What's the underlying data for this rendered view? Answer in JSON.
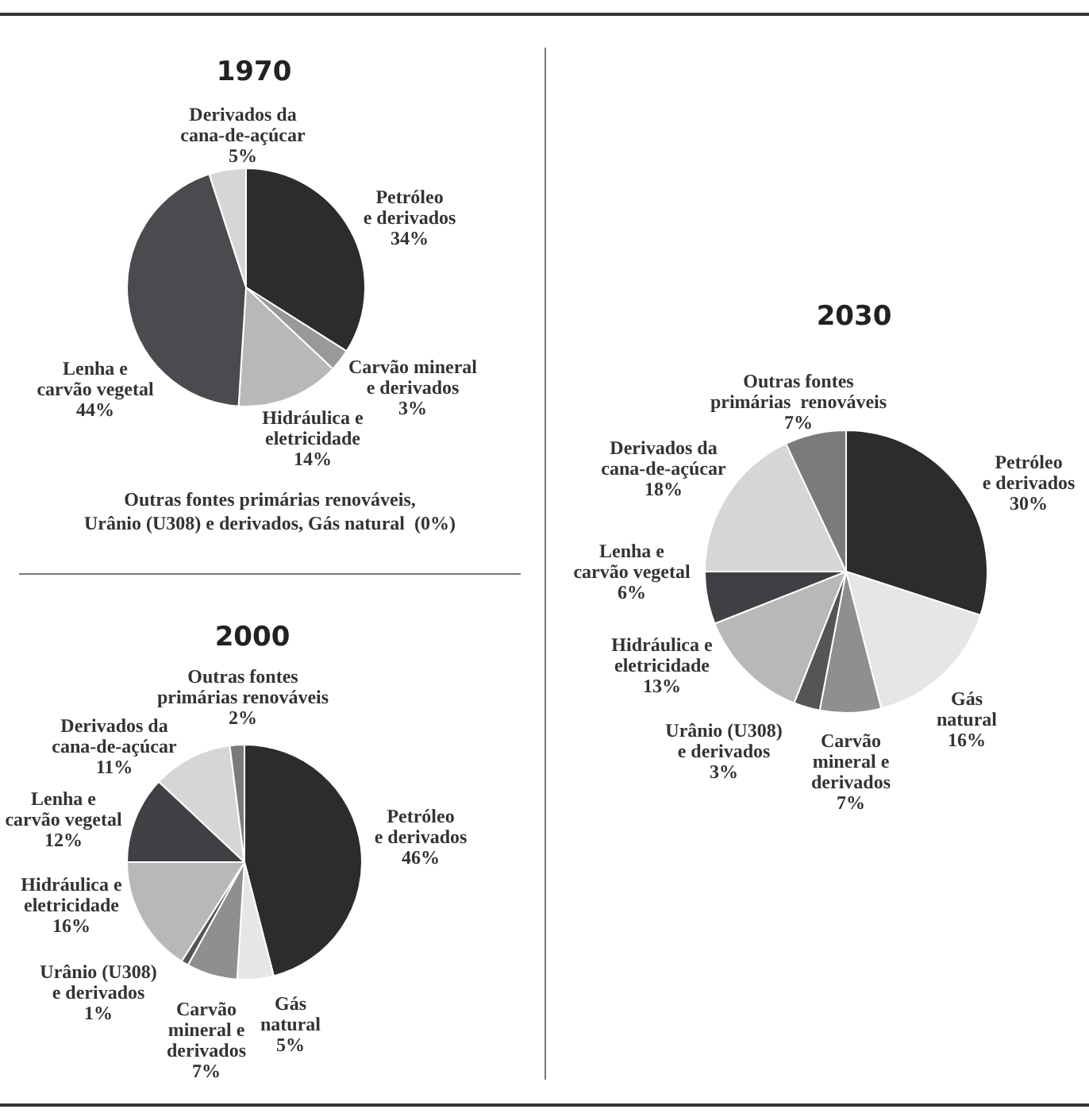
{
  "chart_data": [
    {
      "type": "pie",
      "title": "1970",
      "categories": [
        "Petróleo\ne derivados",
        "Carvão mineral\ne derivados",
        "Hidráulica e\neletricidade",
        "Lenha e\ncarvão vegetal",
        "Derivados da\ncana-de-açúcar"
      ],
      "values": [
        34,
        3,
        14,
        44,
        5
      ],
      "value_labels": [
        "34%",
        "3%",
        "14%",
        "44%",
        "5%"
      ],
      "colors": [
        "#2c2c2f",
        "#999999",
        "#b8b8b8",
        "#4a4b4e",
        "#d6d6d6"
      ],
      "annotations": [
        "Outras fontes primárias renováveis,\nUrânio (U308) e derivados, Gás natural  (0%)"
      ]
    },
    {
      "type": "pie",
      "title": "2000",
      "categories": [
        "Petróleo\ne derivados",
        "Gás\nnatural",
        "Carvão\nmineral e\nderivados",
        "Urânio (U308)\ne derivados",
        "Hidráulica e\neletricidade",
        "Lenha e\ncarvão vegetal",
        "Derivados da\ncana-de-açúcar",
        "Outras fontes\nprimárias renováveis"
      ],
      "values": [
        46,
        5,
        7,
        1,
        16,
        12,
        11,
        2
      ],
      "value_labels": [
        "46%",
        "5%",
        "7%",
        "1%",
        "16%",
        "12%",
        "11%",
        "2%"
      ],
      "colors": [
        "#2c2c2f",
        "#e6e6e6",
        "#8f8f8f",
        "#555555",
        "#b8b8b8",
        "#3f4043",
        "#d6d6d6",
        "#7b7b7b"
      ]
    },
    {
      "type": "pie",
      "title": "2030",
      "categories": [
        "Petróleo\ne derivados",
        "Gás\nnatural",
        "Carvão\nmineral e\nderivados",
        "Urânio (U308)\ne derivados",
        "Hidráulica e\neletricidade",
        "Lenha e\ncarvão vegetal",
        "Derivados da\ncana-de-açúcar",
        "Outras fontes\nprimárias  renováveis"
      ],
      "values": [
        30,
        16,
        7,
        3,
        13,
        6,
        18,
        7
      ],
      "value_labels": [
        "30%",
        "16%",
        "7%",
        "3%",
        "13%",
        "6%",
        "18%",
        "7%"
      ],
      "colors": [
        "#2c2c2f",
        "#e6e6e6",
        "#8f8f8f",
        "#555555",
        "#b8b8b8",
        "#3f4043",
        "#d6d6d6",
        "#7b7b7b"
      ]
    }
  ]
}
